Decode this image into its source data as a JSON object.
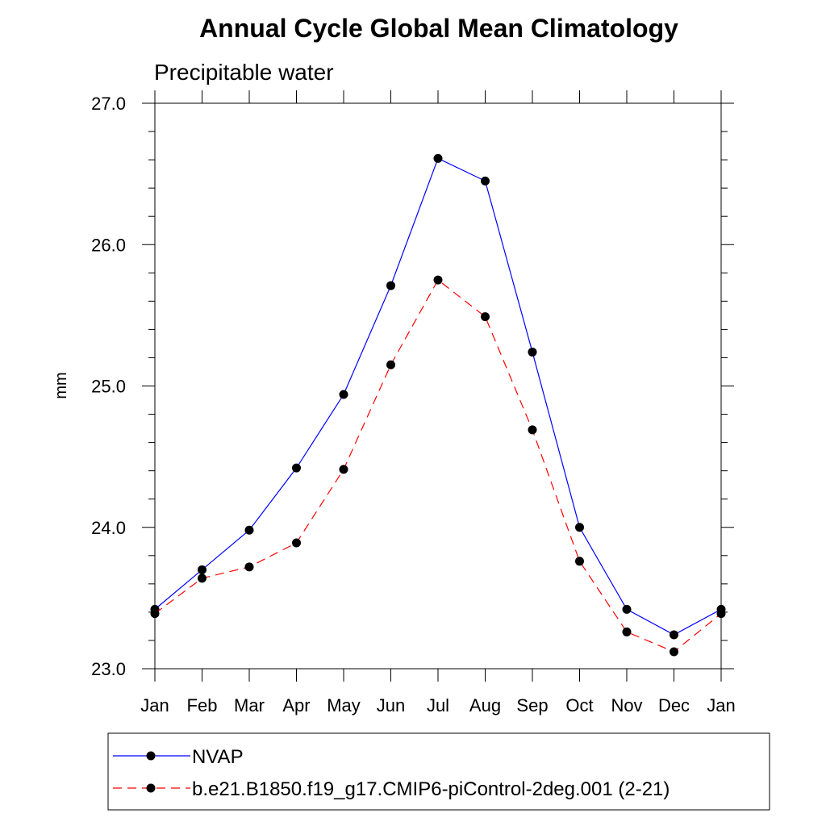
{
  "chart_data": {
    "type": "line",
    "title": "Annual Cycle Global Mean Climatology",
    "subtitle": "Precipitable water",
    "xlabel": "",
    "ylabel": "mm",
    "categories": [
      "Jan",
      "Feb",
      "Mar",
      "Apr",
      "May",
      "Jun",
      "Jul",
      "Aug",
      "Sep",
      "Oct",
      "Nov",
      "Dec",
      "Jan"
    ],
    "ylim": [
      23.0,
      27.0
    ],
    "yticks": [
      "23.0",
      "24.0",
      "25.0",
      "26.0",
      "27.0"
    ],
    "grid": false,
    "legend_position": "bottom",
    "series": [
      {
        "name": "NVAP",
        "color": "#0000ff",
        "line_style": "solid",
        "marker": "filled-circle",
        "values": [
          23.42,
          23.7,
          23.98,
          24.42,
          24.94,
          25.71,
          26.61,
          26.45,
          25.24,
          24.0,
          23.42,
          23.24,
          23.42
        ]
      },
      {
        "name": "b.e21.B1850.f19_g17.CMIP6-piControl-2deg.001 (2-21)",
        "color": "#ff0000",
        "line_style": "dashed",
        "marker": "filled-circle",
        "values": [
          23.39,
          23.64,
          23.72,
          23.89,
          24.41,
          25.15,
          25.75,
          25.49,
          24.69,
          23.76,
          23.26,
          23.12,
          23.39
        ]
      }
    ]
  }
}
